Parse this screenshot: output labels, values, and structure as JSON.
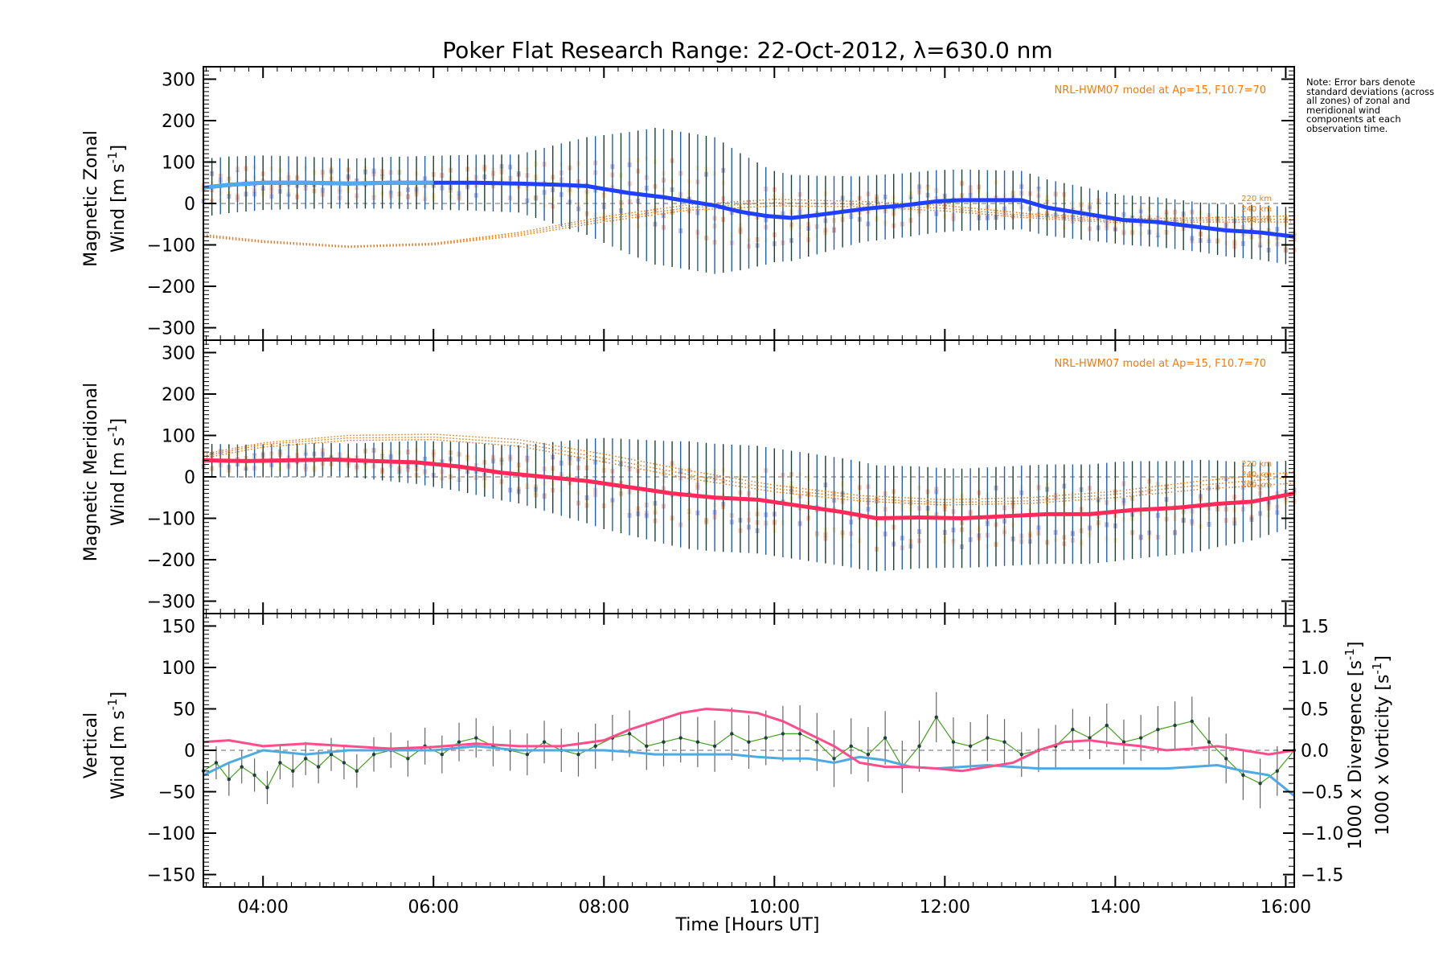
{
  "title": "Poker Flat Research Range: 22-Oct-2012, λ=630.0 nm",
  "note": "Note: Error bars denote standard deviations (across all zones) of zonal and meridional wind components at each observation time.",
  "model_label": "NRL-HWM07 model at Ap=15, F10.7=70",
  "x_axis": {
    "label": "Time [Hours UT]",
    "range_hours": [
      3.3,
      16.1
    ],
    "ticks": [
      {
        "h": 4,
        "label": "04:00"
      },
      {
        "h": 6,
        "label": "06:00"
      },
      {
        "h": 8,
        "label": "08:00"
      },
      {
        "h": 10,
        "label": "10:00"
      },
      {
        "h": 12,
        "label": "12:00"
      },
      {
        "h": 14,
        "label": "14:00"
      },
      {
        "h": 16,
        "label": "16:00"
      }
    ]
  },
  "colors": {
    "zonal": "#2040ff",
    "zonal_start": "#50aaf0",
    "meridional": "#ff2a5a",
    "vertical": "#44a020",
    "divergence": "#50aae0",
    "vorticity": "#ff4d8c",
    "model": "#f07a10",
    "errorbar_a": "#1a4030",
    "errorbar_b": "#2060b0",
    "zone_tan": "#ffe9b0",
    "zone_salmon": "#ffb090",
    "zone_lavender": "#a0a0d8"
  },
  "panels": [
    {
      "id": "zonal",
      "ylabel_line1": "Magnetic Zonal",
      "ylabel_line2": "Wind [m s",
      "ylabel_sup": "-1",
      "ylabel_end": "]",
      "yrange": [
        -330,
        330
      ],
      "yticks": [
        -300,
        -200,
        -100,
        0,
        100,
        200,
        300
      ],
      "tick_labels": [
        "−300",
        "−200",
        "−100",
        "0",
        "100",
        "200",
        "300"
      ],
      "altitude_labels": [
        "220 km",
        "240 km",
        "260 km"
      ]
    },
    {
      "id": "meridional",
      "ylabel_line1": "Magnetic Meridional",
      "ylabel_line2": "Wind [m s",
      "ylabel_sup": "-1",
      "ylabel_end": "]",
      "yrange": [
        -330,
        330
      ],
      "yticks": [
        -300,
        -200,
        -100,
        0,
        100,
        200,
        300
      ],
      "tick_labels": [
        "−300",
        "−200",
        "−100",
        "0",
        "100",
        "200",
        "300"
      ],
      "altitude_labels": [
        "220 km",
        "240 km",
        "260 km"
      ]
    },
    {
      "id": "vertical",
      "ylabel_line1": "Vertical",
      "ylabel_line2": "Wind [m s",
      "ylabel_sup": "-1",
      "ylabel_end": "]",
      "yrange": [
        -165,
        165
      ],
      "yticks": [
        -150,
        -100,
        -50,
        0,
        50,
        100,
        150
      ],
      "tick_labels": [
        "−150",
        "−100",
        "−50",
        "0",
        "50",
        "100",
        "150"
      ],
      "right_axis": {
        "ticks": [
          -1.5,
          -1.0,
          -0.5,
          0.0,
          0.5,
          1.0,
          1.5
        ],
        "tick_labels": [
          "−1.5",
          "−1.0",
          "−0.5",
          "0.0",
          "0.5",
          "1.0",
          "1.5"
        ],
        "label_divergence": "1000 x Divergence [s",
        "label_vorticity": "1000 x Vorticity [s",
        "label_sup": "-1",
        "label_end": "]"
      }
    }
  ],
  "chart_data": [
    {
      "type": "line",
      "title": "Poker Flat Research Range: 22-Oct-2012, λ=630.0 nm",
      "ylabel": "Magnetic Zonal Wind [m s-1]",
      "xlabel": "",
      "ylim": [
        -330,
        330
      ],
      "series": [
        {
          "values_hours": [
            3.3,
            3.6,
            4.0,
            4.5,
            5.0,
            5.5,
            6.0,
            6.5,
            7.0,
            7.5,
            7.8,
            8.0,
            8.3,
            8.7,
            9.0,
            9.3,
            9.6,
            9.9,
            10.2,
            10.5,
            10.8,
            11.1,
            11.5,
            11.9,
            12.2,
            12.5,
            12.9,
            13.2,
            13.5,
            13.8,
            14.1,
            14.5,
            14.9,
            15.3,
            15.7,
            16.1
          ],
          "values": [
            38,
            45,
            50,
            50,
            48,
            50,
            50,
            50,
            48,
            45,
            42,
            35,
            25,
            15,
            5,
            -5,
            -20,
            -30,
            -35,
            -28,
            -20,
            -12,
            -5,
            5,
            8,
            8,
            8,
            -10,
            -20,
            -30,
            -40,
            -45,
            -55,
            -65,
            -70,
            -80
          ]
        }
      ],
      "error_sd": [
        [
          3.3,
          70
        ],
        [
          5,
          60
        ],
        [
          7,
          70
        ],
        [
          8.0,
          130
        ],
        [
          8.6,
          165
        ],
        [
          9.3,
          165
        ],
        [
          10.0,
          110
        ],
        [
          11.0,
          80
        ],
        [
          12.0,
          75
        ],
        [
          13.0,
          70
        ],
        [
          14.0,
          60
        ],
        [
          15.0,
          60
        ],
        [
          16.1,
          70
        ]
      ],
      "model_curves": [
        {
          "name": "220 km",
          "values_hours": [
            3.3,
            4.0,
            5.0,
            6.0,
            7.0,
            8.0,
            9.0,
            10.0,
            11.0,
            12.0,
            13.0,
            14.0,
            15.0,
            16.1
          ],
          "values": [
            -75,
            -90,
            -103,
            -96,
            -70,
            -32,
            -3,
            10,
            5,
            -5,
            -25,
            -37,
            -35,
            -30
          ]
        },
        {
          "name": "240 km",
          "values_hours": [
            3.3,
            4.0,
            5.0,
            6.0,
            7.0,
            8.0,
            9.0,
            10.0,
            11.0,
            12.0,
            13.0,
            14.0,
            15.0,
            16.1
          ],
          "values": [
            -78,
            -92,
            -104,
            -98,
            -74,
            -38,
            -10,
            2,
            -2,
            -12,
            -30,
            -42,
            -40,
            -38
          ]
        },
        {
          "name": "260 km",
          "values_hours": [
            3.3,
            4.0,
            5.0,
            6.0,
            7.0,
            8.0,
            9.0,
            10.0,
            11.0,
            12.0,
            13.0,
            14.0,
            15.0,
            16.1
          ],
          "values": [
            -80,
            -94,
            -106,
            -100,
            -78,
            -44,
            -16,
            -6,
            -8,
            -18,
            -35,
            -46,
            -45,
            -45
          ]
        }
      ]
    },
    {
      "type": "line",
      "title": "",
      "ylabel": "Magnetic Meridional Wind [m s-1]",
      "xlabel": "",
      "ylim": [
        -330,
        330
      ],
      "series": [
        {
          "values_hours": [
            3.3,
            3.8,
            4.3,
            4.8,
            5.3,
            5.8,
            6.3,
            6.8,
            7.3,
            7.8,
            8.3,
            8.8,
            9.3,
            9.8,
            10.3,
            10.8,
            11.2,
            11.7,
            12.2,
            12.7,
            13.2,
            13.7,
            14.2,
            14.7,
            15.2,
            15.6,
            16.1
          ],
          "values": [
            40,
            38,
            40,
            42,
            38,
            35,
            25,
            10,
            0,
            -10,
            -25,
            -40,
            -50,
            -55,
            -70,
            -85,
            -100,
            -98,
            -100,
            -95,
            -90,
            -90,
            -80,
            -75,
            -65,
            -60,
            -40
          ]
        }
      ],
      "error_sd": [
        [
          3.3,
          40
        ],
        [
          5,
          40
        ],
        [
          7,
          70
        ],
        [
          8.0,
          110
        ],
        [
          9.0,
          130
        ],
        [
          10.0,
          130
        ],
        [
          11.0,
          130
        ],
        [
          12.0,
          120
        ],
        [
          13.0,
          120
        ],
        [
          14.0,
          120
        ],
        [
          15.0,
          110
        ],
        [
          16.1,
          80
        ]
      ],
      "model_curves": [
        {
          "name": "220 km",
          "values_hours": [
            3.3,
            4.0,
            5.0,
            6.0,
            7.0,
            8.0,
            9.0,
            10.0,
            11.0,
            12.0,
            13.0,
            14.0,
            15.0,
            16.1
          ],
          "values": [
            55,
            82,
            100,
            103,
            90,
            55,
            15,
            -20,
            -45,
            -55,
            -50,
            -35,
            -10,
            12
          ]
        },
        {
          "name": "240 km",
          "values_hours": [
            3.3,
            4.0,
            5.0,
            6.0,
            7.0,
            8.0,
            9.0,
            10.0,
            11.0,
            12.0,
            13.0,
            14.0,
            15.0,
            16.1
          ],
          "values": [
            50,
            78,
            94,
            96,
            82,
            45,
            5,
            -28,
            -52,
            -62,
            -58,
            -42,
            -20,
            0
          ]
        },
        {
          "name": "260 km",
          "values_hours": [
            3.3,
            4.0,
            5.0,
            6.0,
            7.0,
            8.0,
            9.0,
            10.0,
            11.0,
            12.0,
            13.0,
            14.0,
            15.0,
            16.1
          ],
          "values": [
            45,
            72,
            88,
            90,
            74,
            36,
            -4,
            -36,
            -58,
            -68,
            -64,
            -50,
            -30,
            -15
          ]
        }
      ]
    },
    {
      "type": "line",
      "title": "",
      "ylabel": "Vertical Wind [m s-1]",
      "xlabel": "Time [Hours UT]",
      "ylim": [
        -165,
        165
      ],
      "series": [
        {
          "name": "1000 x Vorticity [s-1]",
          "axis": "right",
          "values_hours": [
            3.3,
            3.6,
            4.0,
            4.5,
            5.0,
            5.5,
            6.0,
            6.5,
            7.0,
            7.5,
            8.0,
            8.3,
            8.6,
            8.9,
            9.2,
            9.5,
            9.8,
            10.1,
            10.4,
            10.7,
            11.0,
            11.3,
            11.6,
            11.9,
            12.2,
            12.5,
            12.8,
            13.1,
            13.4,
            13.7,
            14.0,
            14.3,
            14.6,
            14.9,
            15.2,
            15.5,
            15.8,
            16.1
          ],
          "values": [
            0.1,
            0.12,
            0.05,
            0.08,
            0.05,
            0.02,
            0.04,
            0.08,
            0.05,
            0.05,
            0.12,
            0.25,
            0.35,
            0.45,
            0.5,
            0.48,
            0.45,
            0.35,
            0.2,
            0.05,
            -0.15,
            -0.2,
            -0.2,
            -0.22,
            -0.25,
            -0.2,
            -0.15,
            0.0,
            0.1,
            0.12,
            0.08,
            0.05,
            0.0,
            0.02,
            0.05,
            0.0,
            -0.05,
            0.0
          ]
        },
        {
          "name": "1000 x Divergence [s-1]",
          "axis": "right",
          "values_hours": [
            3.3,
            3.6,
            4.0,
            4.5,
            5.0,
            5.5,
            6.0,
            6.5,
            7.0,
            7.5,
            8.0,
            8.3,
            8.6,
            8.9,
            9.2,
            9.5,
            9.8,
            10.1,
            10.4,
            10.7,
            11.0,
            11.3,
            11.6,
            11.9,
            12.2,
            12.5,
            12.8,
            13.1,
            13.4,
            13.7,
            14.0,
            14.3,
            14.6,
            14.9,
            15.2,
            15.5,
            15.8,
            16.1
          ],
          "values": [
            -0.3,
            -0.15,
            0.0,
            -0.05,
            0.0,
            0.0,
            0.0,
            0.05,
            0.0,
            0.0,
            0.0,
            -0.02,
            -0.05,
            -0.05,
            -0.05,
            -0.05,
            -0.08,
            -0.1,
            -0.1,
            -0.15,
            -0.08,
            -0.12,
            -0.2,
            -0.22,
            -0.2,
            -0.18,
            -0.2,
            -0.22,
            -0.22,
            -0.22,
            -0.22,
            -0.22,
            -0.22,
            -0.2,
            -0.18,
            -0.25,
            -0.3,
            -0.55
          ]
        },
        {
          "name": "Vertical Wind",
          "axis": "left",
          "values_hours": [
            3.3,
            3.45,
            3.6,
            3.75,
            3.9,
            4.05,
            4.2,
            4.35,
            4.5,
            4.65,
            4.8,
            4.95,
            5.1,
            5.3,
            5.5,
            5.7,
            5.9,
            6.1,
            6.3,
            6.5,
            6.7,
            6.9,
            7.1,
            7.3,
            7.5,
            7.7,
            7.9,
            8.1,
            8.3,
            8.5,
            8.7,
            8.9,
            9.1,
            9.3,
            9.5,
            9.7,
            9.9,
            10.1,
            10.3,
            10.5,
            10.7,
            10.9,
            11.1,
            11.3,
            11.5,
            11.7,
            11.9,
            12.1,
            12.3,
            12.5,
            12.7,
            12.9,
            13.1,
            13.3,
            13.5,
            13.7,
            13.9,
            14.1,
            14.3,
            14.5,
            14.7,
            14.9,
            15.1,
            15.3,
            15.5,
            15.7,
            15.9,
            16.1
          ],
          "values": [
            -25,
            -15,
            -35,
            -20,
            -30,
            -45,
            -15,
            -25,
            -10,
            -20,
            -5,
            -15,
            -25,
            -5,
            0,
            -10,
            5,
            -5,
            10,
            15,
            5,
            0,
            -5,
            10,
            0,
            -5,
            5,
            15,
            20,
            5,
            10,
            15,
            10,
            5,
            20,
            10,
            15,
            20,
            20,
            10,
            -10,
            5,
            -5,
            15,
            -20,
            5,
            40,
            10,
            5,
            15,
            10,
            -5,
            0,
            5,
            25,
            15,
            30,
            10,
            15,
            25,
            30,
            35,
            10,
            -10,
            -30,
            -40,
            -25,
            0
          ],
          "error_sd": [
            [
              3.3,
              20
            ],
            [
              5,
              20
            ],
            [
              7,
              25
            ],
            [
              9,
              30
            ],
            [
              10.5,
              35
            ],
            [
              12,
              30
            ],
            [
              13.5,
              25
            ],
            [
              15,
              30
            ],
            [
              16.1,
              30
            ]
          ]
        }
      ]
    }
  ]
}
